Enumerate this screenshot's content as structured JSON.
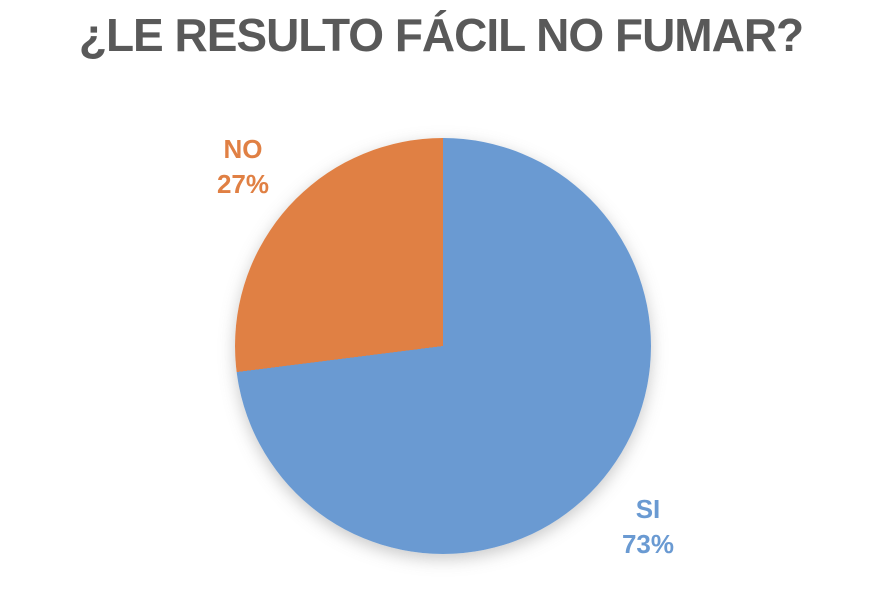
{
  "page": {
    "background": "#FFFFFF"
  },
  "chart_data": {
    "type": "pie",
    "title": "¿LE RESULTO FÁCIL NO FUMAR?",
    "title_color": "#595959",
    "start_angle_deg": 0,
    "direction": "clockwise",
    "legend": "none",
    "label_style": "category name and percent stacked outside slice, colored to match slice",
    "slices": [
      {
        "label": "SI",
        "value": 73,
        "percent_text": "73%",
        "color": "#6A9AD2"
      },
      {
        "label": "NO",
        "value": 27,
        "percent_text": "27%",
        "color": "#E08044"
      }
    ]
  }
}
